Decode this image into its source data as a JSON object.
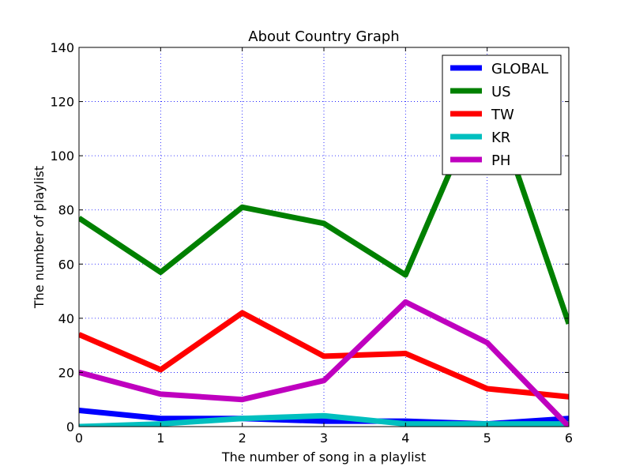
{
  "chart_data": {
    "type": "line",
    "title": "About Country Graph",
    "xlabel": "The number of song in a playlist",
    "ylabel": "The number of playlist",
    "xlim": [
      0,
      6
    ],
    "ylim": [
      0,
      140
    ],
    "x": [
      0,
      1,
      2,
      3,
      4,
      5,
      6
    ],
    "xticks": [
      "0",
      "1",
      "2",
      "3",
      "4",
      "5",
      "6"
    ],
    "yticks": [
      "0",
      "20",
      "40",
      "60",
      "80",
      "100",
      "120",
      "140"
    ],
    "grid": true,
    "legend_position": "top-right",
    "series": [
      {
        "name": "GLOBAL",
        "color": "#0000ff",
        "values": [
          6,
          3,
          3,
          2,
          2,
          1,
          3
        ]
      },
      {
        "name": "US",
        "color": "#008000",
        "values": [
          77,
          57,
          81,
          75,
          56,
          126,
          38
        ]
      },
      {
        "name": "TW",
        "color": "#ff0000",
        "values": [
          34,
          21,
          42,
          26,
          27,
          14,
          11
        ]
      },
      {
        "name": "KR",
        "color": "#00bfbf",
        "values": [
          0,
          1,
          3,
          4,
          1,
          1,
          1
        ]
      },
      {
        "name": "PH",
        "color": "#bf00bf",
        "values": [
          20,
          12,
          10,
          17,
          46,
          31,
          0
        ]
      }
    ]
  }
}
